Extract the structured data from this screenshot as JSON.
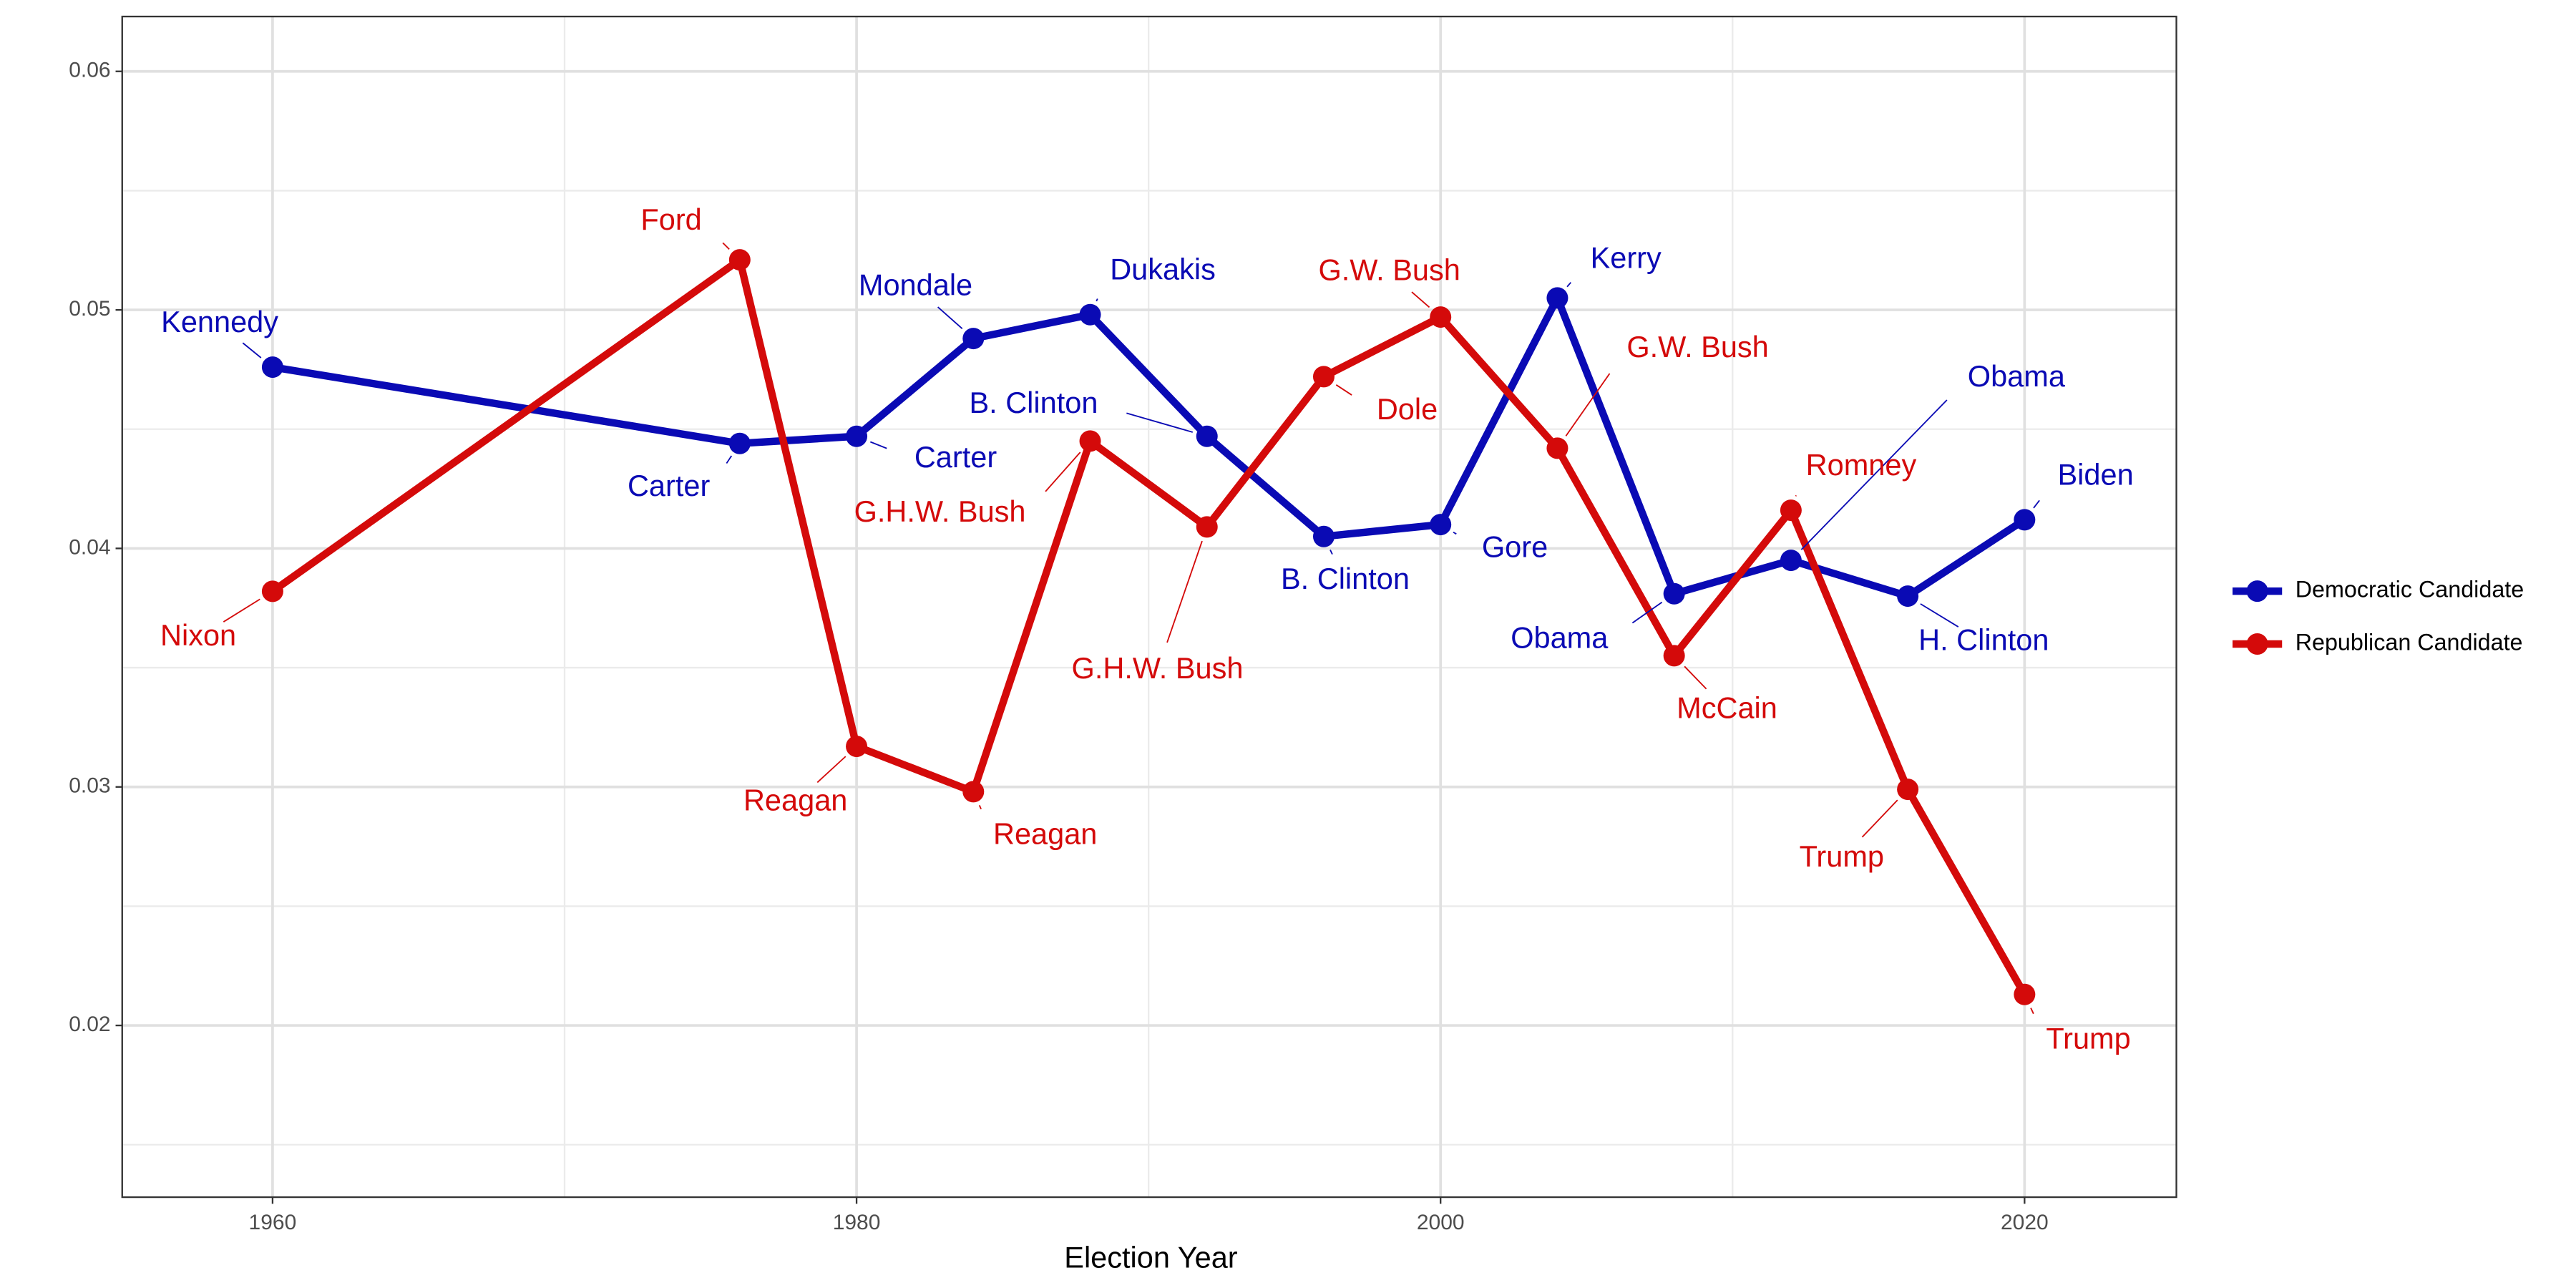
{
  "chart_data": {
    "type": "line",
    "x_label": "Election Year",
    "x": [
      1960,
      1976,
      1980,
      1984,
      1988,
      1992,
      1996,
      2000,
      2004,
      2008,
      2012,
      2016,
      2020
    ],
    "series": [
      {
        "name": "Democratic Candidate",
        "color": "#0a0ab4",
        "values": [
          0.0476,
          0.0444,
          0.0447,
          0.0488,
          0.0498,
          0.0447,
          0.0405,
          0.041,
          0.0505,
          0.0381,
          0.0395,
          0.038,
          0.0412
        ],
        "labels": [
          "Kennedy",
          "Carter",
          "Carter",
          "Mondale",
          "Dukakis",
          "B. Clinton",
          "B. Clinton",
          "Gore",
          "Kerry",
          "Obama",
          "Obama",
          "H. Clinton",
          "Biden"
        ]
      },
      {
        "name": "Republican Candidate",
        "color": "#d40a0a",
        "values": [
          0.0382,
          0.0521,
          0.0317,
          0.0298,
          0.0445,
          0.0409,
          0.0472,
          0.0497,
          0.0442,
          0.0355,
          0.0416,
          0.0299,
          0.0213
        ],
        "labels": [
          "Nixon",
          "Ford",
          "Reagan",
          "Reagan",
          "G.H.W. Bush",
          "G.H.W. Bush",
          "Dole",
          "G.W. Bush",
          "G.W. Bush",
          "McCain",
          "Romney",
          "Trump",
          "Trump"
        ]
      }
    ],
    "xlim": [
      1954.85,
      2025.2
    ],
    "xticks": [
      1960,
      1980,
      2000,
      2020
    ],
    "ylim": [
      0.0128,
      0.0623
    ],
    "yticks": [
      0.02,
      0.03,
      0.04,
      0.05,
      0.06
    ],
    "grid": true,
    "legend": "right"
  }
}
